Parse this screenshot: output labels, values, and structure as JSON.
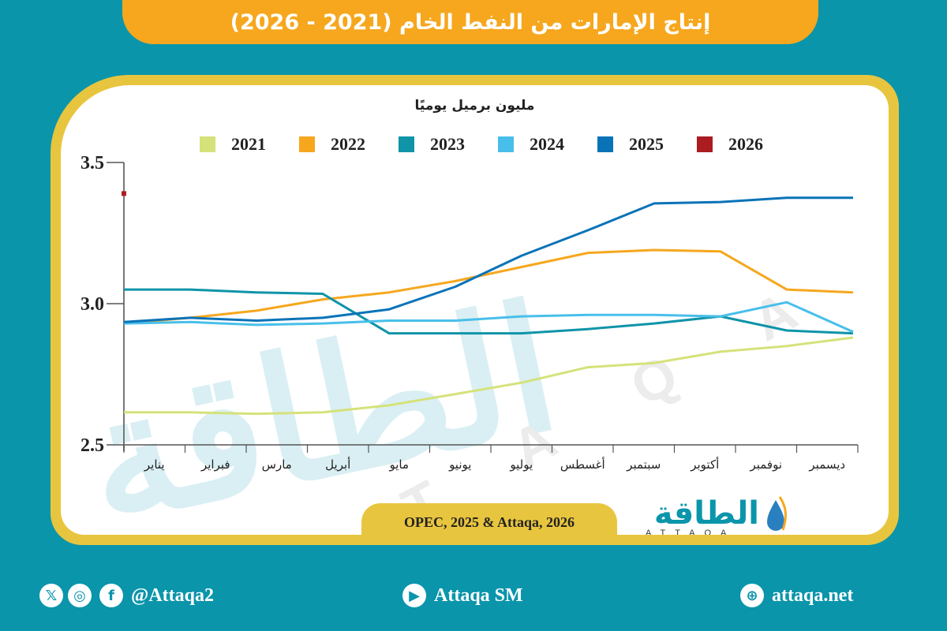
{
  "header": {
    "title": "إنتاج الإمارات من النفط الخام (2021 - 2026)"
  },
  "chart": {
    "unit_label": "مليون برميل يوميًا"
  },
  "legend": [
    {
      "label": "2021",
      "color": "#d5e27a"
    },
    {
      "label": "2022",
      "color": "#f6a71e"
    },
    {
      "label": "2023",
      "color": "#0f94a8"
    },
    {
      "label": "2024",
      "color": "#48bfea"
    },
    {
      "label": "2025",
      "color": "#0a73b8"
    },
    {
      "label": "2026",
      "color": "#ab1c20"
    }
  ],
  "source": "OPEC, 2025 & Attaqa, 2026",
  "logo": {
    "arabic": "الطاقة",
    "latin": "ATTAQA"
  },
  "footer": {
    "social_handle": "@Attaqa2",
    "youtube": "Attaqa SM",
    "website": "attaqa.net"
  },
  "chart_data": {
    "type": "line",
    "title": "إنتاج الإمارات من النفط الخام (2021 - 2026)",
    "ylabel": "مليون برميل يوميًا",
    "xlabel": "",
    "ylim": [
      2.5,
      3.5
    ],
    "yticks": [
      "2.5",
      "3.0",
      "3.5"
    ],
    "grid": false,
    "legend_position": "top",
    "categories": [
      "يناير",
      "فبراير",
      "مارس",
      "أبريل",
      "مايو",
      "يونيو",
      "يوليو",
      "أغسطس",
      "سبتمبر",
      "أكتوبر",
      "نوفمبر",
      "ديسمبر"
    ],
    "series": [
      {
        "name": "2021",
        "color": "#d5e27a",
        "values": [
          2.615,
          2.615,
          2.61,
          2.615,
          2.64,
          2.68,
          2.72,
          2.775,
          2.79,
          2.83,
          2.85,
          2.88
        ]
      },
      {
        "name": "2022",
        "color": "#f6a71e",
        "values": [
          2.93,
          2.95,
          2.975,
          3.015,
          3.04,
          3.08,
          3.13,
          3.18,
          3.19,
          3.185,
          3.05,
          3.04
        ]
      },
      {
        "name": "2023",
        "color": "#0f94a8",
        "values": [
          3.05,
          3.05,
          3.04,
          3.035,
          2.895,
          2.895,
          2.895,
          2.91,
          2.93,
          2.955,
          2.905,
          2.895
        ]
      },
      {
        "name": "2024",
        "color": "#48bfea",
        "values": [
          2.93,
          2.935,
          2.925,
          2.93,
          2.94,
          2.94,
          2.955,
          2.96,
          2.96,
          2.955,
          3.005,
          2.9
        ]
      },
      {
        "name": "2025",
        "color": "#0a73b8",
        "values": [
          2.935,
          2.95,
          2.94,
          2.95,
          2.98,
          3.06,
          3.17,
          3.26,
          3.355,
          3.36,
          3.375,
          3.375
        ]
      },
      {
        "name": "2026",
        "color": "#ab1c20",
        "values": [
          3.39
        ]
      }
    ]
  }
}
